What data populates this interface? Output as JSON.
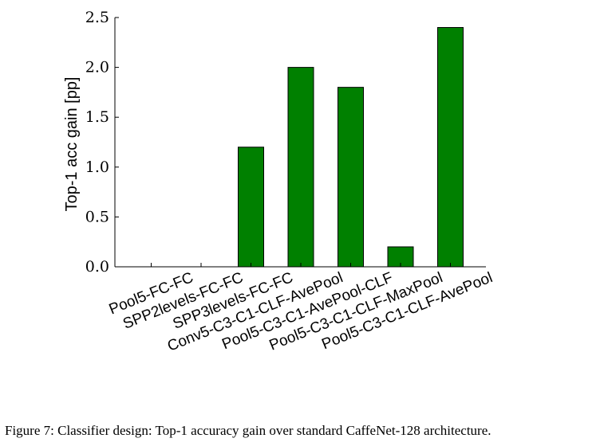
{
  "chart_data": {
    "type": "bar",
    "title": "",
    "xlabel": "",
    "ylabel": "Top-1 acc gain [pp]",
    "ylim": [
      0,
      2.5
    ],
    "yticks": [
      "0.0",
      "0.5",
      "1.0",
      "1.5",
      "2.0",
      "2.5"
    ],
    "categories": [
      "Pool5-FC-FC",
      "SPP2levels-FC-FC",
      "SPP3levels-FC-FC",
      "Conv5-C3-C1-CLF-AvePool",
      "Pool5-C3-C1-AvePool-CLF",
      "Pool5-C3-C1-CLF-MaxPool",
      "Pool5-C3-C1-CLF-AvePool"
    ],
    "values": [
      0.0,
      0.0,
      1.2,
      2.0,
      1.8,
      0.2,
      2.4
    ],
    "bar_color": "#008000",
    "grid": false,
    "legend": "none"
  },
  "caption": "Figure 7: Classifier design: Top-1 accuracy gain over standard CaffeNet-128 architecture."
}
